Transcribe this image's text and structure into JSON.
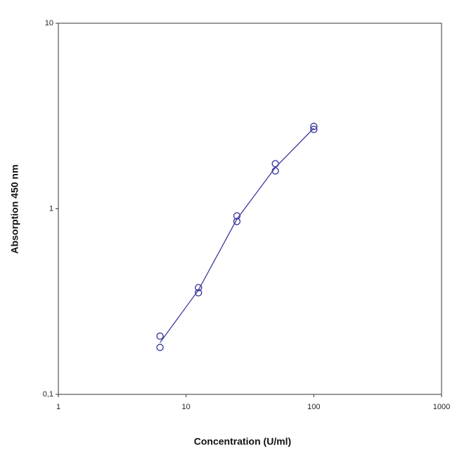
{
  "chart_data": {
    "type": "scatter",
    "x_label": "Concentration (U/ml)",
    "y_label": "Absorption 450 nm",
    "x": [
      6.25,
      6.25,
      12.5,
      12.5,
      25,
      25,
      50,
      50,
      100,
      100
    ],
    "values": [
      0.206,
      0.179,
      0.376,
      0.353,
      0.916,
      0.855,
      1.75,
      1.6,
      2.78,
      2.68
    ],
    "fit": {
      "x": [
        6.25,
        12.5,
        25,
        50,
        100
      ],
      "values": [
        0.19,
        0.365,
        0.88,
        1.67,
        2.72
      ]
    },
    "color": "#3c3ca0",
    "log_x": true,
    "log_y": true,
    "xlim": [
      1,
      1000
    ],
    "ylim": [
      0.1,
      10
    ],
    "xticks": [
      1,
      10,
      100,
      1000
    ],
    "yticks": [
      {
        "value": 0.1,
        "label": "0,1"
      },
      1,
      10
    ]
  }
}
